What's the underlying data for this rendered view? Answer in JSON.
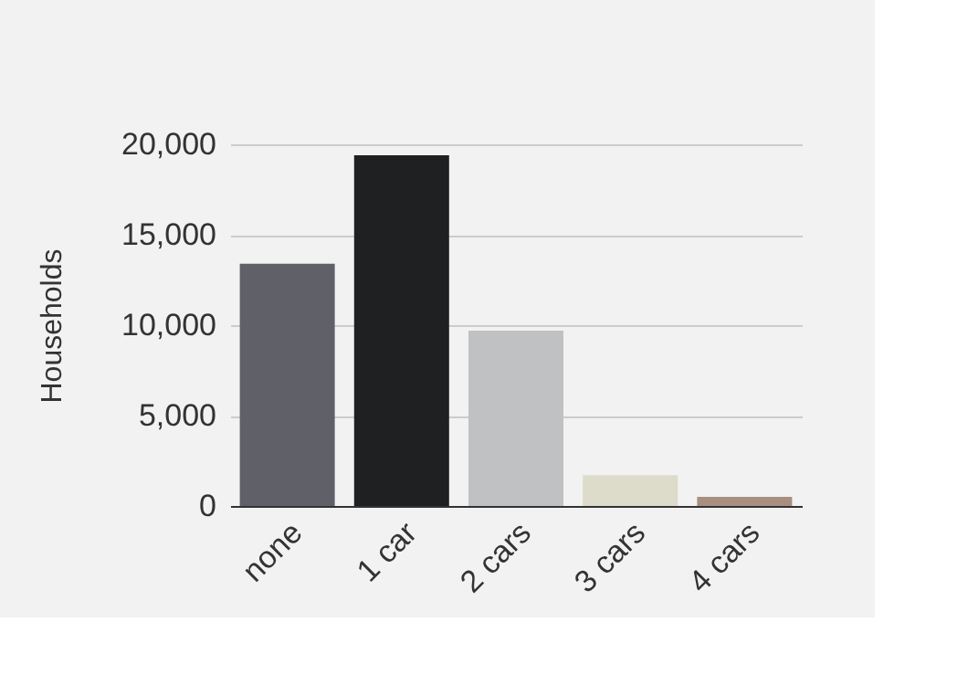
{
  "chart_data": {
    "type": "bar",
    "ylabel": "Households",
    "categories": [
      "none",
      "1 car",
      "2 cars",
      "3 cars",
      "4 cars"
    ],
    "values": [
      13400,
      19400,
      9700,
      1700,
      500
    ],
    "colors": [
      "#5f6068",
      "#1f2022",
      "#c0c1c3",
      "#dddbc9",
      "#a88f80"
    ],
    "ylim": [
      0,
      20000
    ],
    "yticks": [
      0,
      {
        "value": 5000,
        "label": "5,000"
      },
      {
        "value": 10000,
        "label": "10,000"
      },
      {
        "value": 15000,
        "label": "15,000"
      },
      {
        "value": 20000,
        "label": "20,000"
      }
    ],
    "grid": "y"
  }
}
